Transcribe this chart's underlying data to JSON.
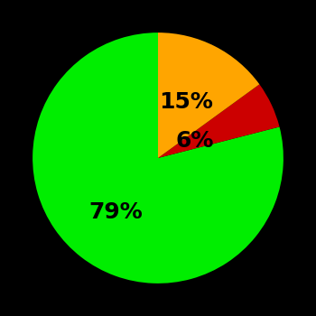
{
  "slices": [
    79,
    6,
    15
  ],
  "colors": [
    "#00ee00",
    "#cc0000",
    "#ffa500"
  ],
  "labels": [
    "79%",
    "6%",
    "15%"
  ],
  "background_color": "#000000",
  "startangle": 90,
  "figsize": [
    3.5,
    3.5
  ],
  "dpi": 100,
  "label_fontsize": 18,
  "label_fontweight": "bold",
  "label_radii": [
    0.55,
    0.32,
    0.5
  ]
}
